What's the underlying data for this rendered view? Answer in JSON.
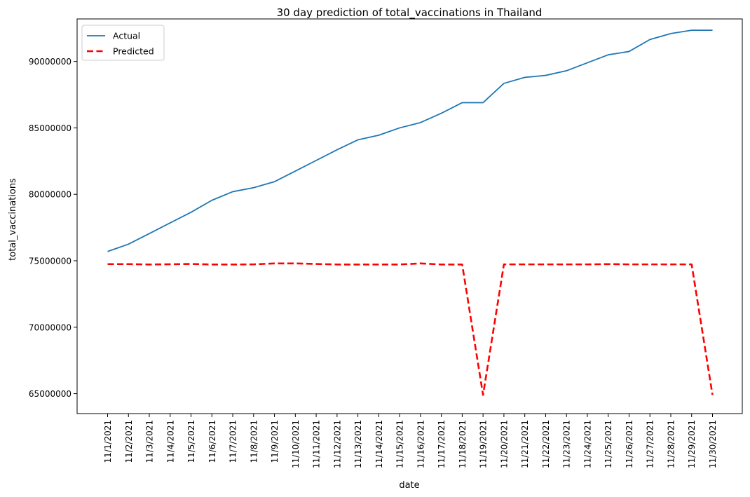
{
  "chart_data": {
    "type": "line",
    "title": "30 day prediction of total_vaccinations in Thailand",
    "xlabel": "date",
    "ylabel": "total_vaccinations",
    "categories": [
      "11/1/2021",
      "11/2/2021",
      "11/3/2021",
      "11/4/2021",
      "11/5/2021",
      "11/6/2021",
      "11/7/2021",
      "11/8/2021",
      "11/9/2021",
      "11/10/2021",
      "11/11/2021",
      "11/12/2021",
      "11/13/2021",
      "11/14/2021",
      "11/15/2021",
      "11/16/2021",
      "11/17/2021",
      "11/18/2021",
      "11/19/2021",
      "11/20/2021",
      "11/21/2021",
      "11/22/2021",
      "11/23/2021",
      "11/24/2021",
      "11/25/2021",
      "11/26/2021",
      "11/27/2021",
      "11/28/2021",
      "11/29/2021",
      "11/30/2021"
    ],
    "yticks": [
      65000000,
      70000000,
      75000000,
      80000000,
      85000000,
      90000000
    ],
    "ylim": [
      63500000,
      93200000
    ],
    "grid": false,
    "legend_position": "upper-left",
    "series": [
      {
        "name": "Actual",
        "color": "#1f77b4",
        "style": "solid",
        "values": [
          75700000,
          76250000,
          77050000,
          77850000,
          78650000,
          79550000,
          80200000,
          80500000,
          80950000,
          81750000,
          82550000,
          83350000,
          84100000,
          84450000,
          85000000,
          85400000,
          86100000,
          86900000,
          86900000,
          88350000,
          88800000,
          88950000,
          89300000,
          89900000,
          90500000,
          90750000,
          91650000,
          92100000,
          92350000,
          92350000
        ]
      },
      {
        "name": "Predicted",
        "color": "#ff0000",
        "style": "dashed",
        "values": [
          74750000,
          74750000,
          74720000,
          74740000,
          74760000,
          74720000,
          74720000,
          74730000,
          74800000,
          74800000,
          74760000,
          74720000,
          74720000,
          74720000,
          74720000,
          74800000,
          74720000,
          74720000,
          64900000,
          74730000,
          74730000,
          74730000,
          74730000,
          74730000,
          74750000,
          74730000,
          74730000,
          74730000,
          74730000,
          64900000
        ]
      }
    ]
  }
}
